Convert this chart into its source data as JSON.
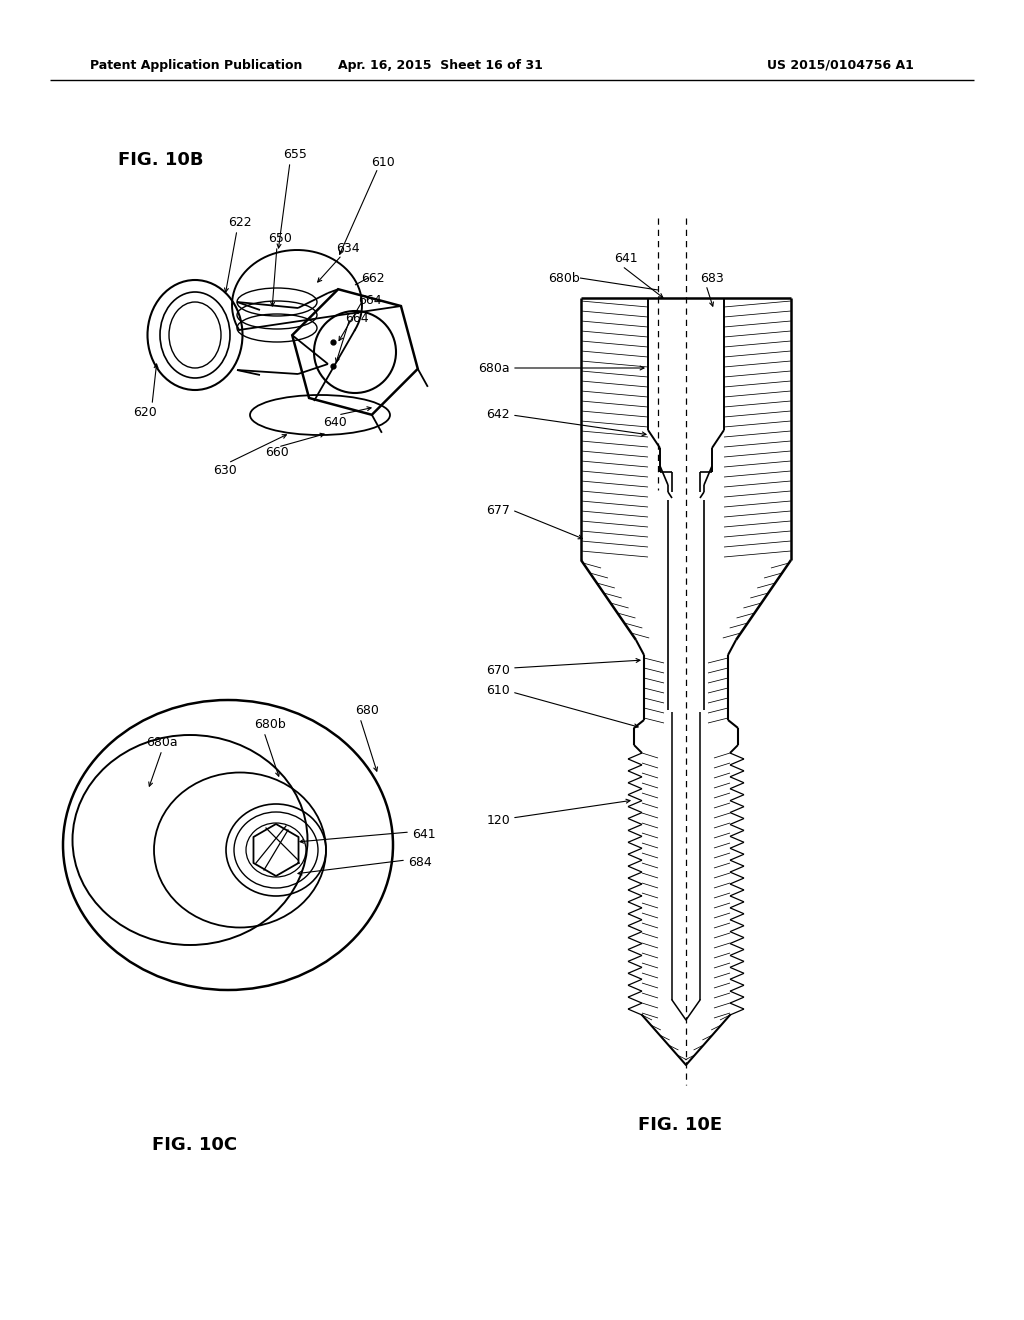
{
  "bg_color": "#ffffff",
  "header_left": "Patent Application Publication",
  "header_mid": "Apr. 16, 2015  Sheet 16 of 31",
  "header_right": "US 2015/0104756 A1",
  "fig10b_label": "FIG. 10B",
  "fig10c_label": "FIG. 10C",
  "fig10e_label": "FIG. 10E"
}
